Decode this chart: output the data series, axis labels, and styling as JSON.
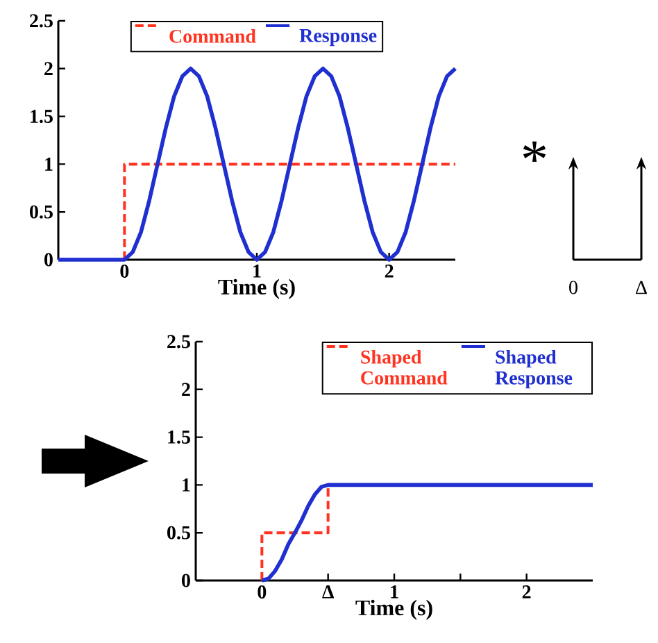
{
  "chart_data": [
    {
      "type": "line",
      "xlabel": "Time (s)",
      "xlim": [
        -0.5,
        2.5
      ],
      "ylim": [
        0,
        2.5
      ],
      "xticks": [
        0,
        1,
        2
      ],
      "yticks": [
        0,
        0.5,
        1,
        1.5,
        2,
        2.5
      ],
      "legend": "top",
      "series": [
        {
          "name": "Command",
          "color": "#ff3320",
          "line_style": "dashed",
          "x": [
            0,
            0,
            2.5
          ],
          "values": [
            0,
            1,
            1
          ]
        },
        {
          "name": "Response",
          "color": "#1f2fd0",
          "line_style": "solid",
          "x": [
            -0.5,
            0,
            0.0625,
            0.125,
            0.1875,
            0.25,
            0.3125,
            0.375,
            0.4375,
            0.5,
            0.5625,
            0.625,
            0.6875,
            0.75,
            0.8125,
            0.875,
            0.9375,
            1,
            1.0625,
            1.125,
            1.1875,
            1.25,
            1.3125,
            1.375,
            1.4375,
            1.5,
            1.5625,
            1.625,
            1.6875,
            1.75,
            1.8125,
            1.875,
            1.9375,
            2,
            2.0625,
            2.125,
            2.1875,
            2.25,
            2.3125,
            2.375,
            2.4375,
            2.5
          ],
          "values": [
            0,
            0,
            0.08,
            0.29,
            0.62,
            1,
            1.38,
            1.71,
            1.92,
            2,
            1.92,
            1.71,
            1.38,
            1,
            0.62,
            0.29,
            0.08,
            0,
            0.08,
            0.29,
            0.62,
            1,
            1.38,
            1.71,
            1.92,
            2,
            1.92,
            1.71,
            1.38,
            1,
            0.62,
            0.29,
            0.08,
            0,
            0.08,
            0.29,
            0.62,
            1,
            1.38,
            1.71,
            1.92,
            2
          ]
        }
      ]
    },
    {
      "type": "other",
      "annotations": [
        "*",
        "0",
        "Δ"
      ]
    },
    {
      "type": "line",
      "xlabel": "Time (s)",
      "xlim": [
        -0.5,
        2.5
      ],
      "ylim": [
        0,
        2.5
      ],
      "xticks": [
        0,
        {
          "value": 0.5,
          "label": "Δ"
        },
        1,
        {
          "value": 1.5,
          "label": null
        },
        2
      ],
      "yticks": [
        0,
        0.5,
        1,
        1.5,
        2,
        2.5
      ],
      "legend": "top right",
      "series": [
        {
          "name": "Shaped Command",
          "color": "#ff3320",
          "line_style": "dashed",
          "x": [
            0,
            0,
            0.5,
            0.5
          ],
          "values": [
            0,
            0.5,
            0.5,
            1
          ]
        },
        {
          "name": "Shaped Response",
          "color": "#1f2fd0",
          "line_style": "solid",
          "x": [
            0,
            0.05,
            0.1,
            0.15,
            0.2,
            0.25,
            0.3,
            0.35,
            0.4,
            0.45,
            0.5,
            2.5
          ],
          "values": [
            0,
            0.02,
            0.1,
            0.22,
            0.38,
            0.5,
            0.63,
            0.78,
            0.9,
            0.98,
            1,
            1
          ]
        }
      ]
    }
  ]
}
